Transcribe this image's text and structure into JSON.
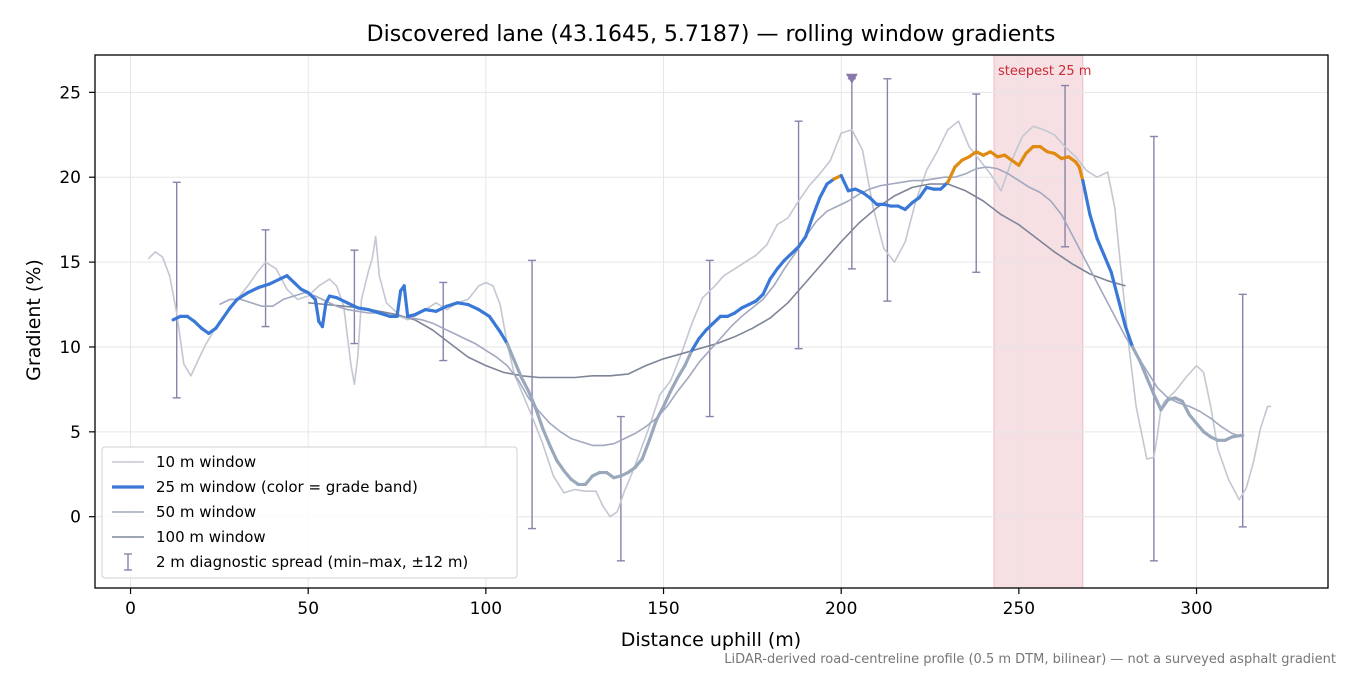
{
  "chart_data": {
    "type": "line",
    "title": "Discovered lane (43.1645, 5.7187) — rolling window gradients",
    "xlabel": "Distance uphill (m)",
    "ylabel": "Gradient (%)",
    "xlim": [
      -10,
      337
    ],
    "ylim": [
      -4.2,
      27.2
    ],
    "xticks": [
      0,
      50,
      100,
      150,
      200,
      250,
      300
    ],
    "yticks": [
      0,
      5,
      10,
      15,
      20,
      25
    ],
    "grid": true,
    "legend_position": "lower-left",
    "steepest_band": {
      "x": [
        243,
        268
      ],
      "label": "steepest 25 m",
      "color": "#e3a0a8"
    },
    "marker": {
      "x": 203,
      "y": 25.8,
      "shape": "triangle-down",
      "color": "#8a78a8"
    },
    "series": [
      {
        "name": "10 m window",
        "color": "#c3c7d1",
        "style": "thin",
        "x": [
          5,
          7,
          9,
          11,
          13,
          15,
          17,
          19,
          21,
          23,
          25,
          27,
          30,
          33,
          36,
          38,
          41,
          44,
          47,
          50,
          53,
          56,
          58,
          60,
          62,
          63,
          64,
          65,
          67,
          68,
          69,
          70,
          72,
          74,
          76,
          78,
          80,
          83,
          86,
          89,
          92,
          95,
          98,
          100,
          102,
          104,
          106,
          108,
          110,
          113,
          116,
          119,
          122,
          125,
          128,
          131,
          133,
          135,
          137,
          139,
          141,
          143,
          146,
          149,
          152,
          155,
          158,
          161,
          164,
          167,
          170,
          173,
          176,
          179,
          182,
          185,
          188,
          191,
          194,
          197,
          200,
          203,
          206,
          209,
          212,
          215,
          218,
          221,
          224,
          227,
          230,
          233,
          236,
          239,
          242,
          245,
          248,
          251,
          254,
          257,
          260,
          263,
          266,
          269,
          272,
          275,
          277,
          279,
          281,
          283,
          286,
          288,
          289,
          290,
          291,
          292,
          294,
          297,
          300,
          302,
          304,
          306,
          309,
          312,
          314,
          316,
          318,
          320,
          321
        ],
        "y": [
          15.2,
          15.6,
          15.3,
          14.2,
          12.0,
          9.0,
          8.3,
          9.2,
          10.1,
          10.8,
          11.5,
          12.0,
          12.8,
          13.6,
          14.5,
          15.0,
          14.6,
          13.4,
          12.8,
          13.0,
          13.6,
          14.0,
          13.6,
          12.4,
          9.0,
          7.8,
          9.5,
          12.8,
          14.5,
          15.2,
          16.5,
          14.2,
          12.6,
          12.2,
          11.8,
          11.6,
          11.8,
          12.2,
          12.6,
          12.2,
          12.6,
          12.8,
          13.6,
          13.8,
          13.6,
          12.5,
          10.2,
          8.4,
          7.4,
          5.9,
          4.3,
          2.4,
          1.4,
          1.6,
          1.5,
          1.5,
          0.6,
          0.0,
          0.3,
          1.5,
          2.5,
          3.6,
          5.3,
          7.2,
          8.0,
          9.6,
          11.4,
          12.9,
          13.5,
          14.2,
          14.6,
          15.0,
          15.4,
          16.0,
          17.2,
          17.6,
          18.6,
          19.5,
          20.2,
          21.0,
          22.6,
          22.8,
          21.6,
          18.2,
          15.8,
          15.0,
          16.2,
          18.6,
          20.4,
          21.5,
          22.8,
          23.3,
          21.8,
          21.0,
          20.2,
          19.2,
          21.0,
          22.4,
          23.0,
          22.8,
          22.5,
          21.8,
          21.2,
          20.4,
          20.0,
          20.3,
          18.2,
          14.0,
          10.0,
          6.5,
          3.4,
          3.5,
          4.8,
          6.4,
          6.8,
          7.0,
          7.4,
          8.2,
          8.9,
          8.5,
          6.5,
          4.0,
          2.2,
          1.0,
          1.7,
          3.2,
          5.2,
          6.5,
          6.5
        ]
      },
      {
        "name": "25 m window (color = grade band)",
        "color": "#3a78d8",
        "style": "thick",
        "band_colors": [
          {
            "min": 0,
            "max": 10,
            "color": "#9aa8bc"
          },
          {
            "min": 10,
            "max": 20,
            "color": "#3a78d8"
          },
          {
            "min": 20,
            "max": 100,
            "color": "#e08a10"
          }
        ],
        "x": [
          12,
          14,
          16,
          18,
          20,
          22,
          24,
          26,
          28,
          30,
          33,
          36,
          39,
          42,
          44,
          46,
          48,
          50,
          52,
          53,
          54,
          55,
          56,
          58,
          61,
          64,
          67,
          70,
          73,
          75,
          76,
          77,
          78,
          80,
          83,
          86,
          89,
          92,
          95,
          98,
          101,
          104,
          106,
          108,
          110,
          112,
          114,
          116,
          118,
          120,
          122,
          124,
          126,
          128,
          130,
          132,
          134,
          136,
          138,
          140,
          142,
          144,
          146,
          148,
          150,
          152,
          154,
          156,
          158,
          160,
          162,
          164,
          166,
          168,
          170,
          172,
          174,
          176,
          178,
          180,
          182,
          184,
          186,
          188,
          190,
          192,
          194,
          196,
          198,
          200,
          202,
          204,
          206,
          208,
          210,
          212,
          214,
          216,
          218,
          220,
          222,
          224,
          226,
          228,
          230,
          232,
          234,
          236,
          238,
          240,
          242,
          244,
          246,
          248,
          250,
          252,
          254,
          256,
          258,
          260,
          262,
          264,
          266,
          267,
          268,
          270,
          272,
          274,
          276,
          278,
          280,
          282,
          284,
          286,
          288,
          290,
          292,
          294,
          296,
          298,
          300,
          302,
          304,
          306,
          308,
          310,
          313
        ],
        "y": [
          11.6,
          11.8,
          11.8,
          11.5,
          11.1,
          10.8,
          11.1,
          11.7,
          12.3,
          12.8,
          13.2,
          13.5,
          13.7,
          14.0,
          14.2,
          13.8,
          13.4,
          13.2,
          12.8,
          11.5,
          11.2,
          12.6,
          13.0,
          12.9,
          12.6,
          12.3,
          12.2,
          12.0,
          11.8,
          11.8,
          13.3,
          13.6,
          11.8,
          11.9,
          12.2,
          12.1,
          12.4,
          12.6,
          12.5,
          12.2,
          11.8,
          10.9,
          10.2,
          9.2,
          8.2,
          7.4,
          6.4,
          5.2,
          4.2,
          3.3,
          2.7,
          2.2,
          1.9,
          1.9,
          2.4,
          2.6,
          2.6,
          2.3,
          2.4,
          2.6,
          2.9,
          3.4,
          4.5,
          5.7,
          6.5,
          7.4,
          8.2,
          8.9,
          9.8,
          10.5,
          11.0,
          11.4,
          11.8,
          11.8,
          12.0,
          12.3,
          12.5,
          12.7,
          13.1,
          14.0,
          14.6,
          15.1,
          15.5,
          15.9,
          16.5,
          17.7,
          18.8,
          19.6,
          19.9,
          20.1,
          19.2,
          19.3,
          19.1,
          18.8,
          18.4,
          18.4,
          18.3,
          18.3,
          18.1,
          18.5,
          18.8,
          19.4,
          19.3,
          19.3,
          19.7,
          20.6,
          21.0,
          21.2,
          21.5,
          21.3,
          21.5,
          21.2,
          21.3,
          21.0,
          20.7,
          21.4,
          21.8,
          21.8,
          21.5,
          21.4,
          21.1,
          21.2,
          20.9,
          20.6,
          19.8,
          17.8,
          16.4,
          15.4,
          14.4,
          12.8,
          11.2,
          10.0,
          9.2,
          8.2,
          7.2,
          6.3,
          6.9,
          7.0,
          6.8,
          6.0,
          5.5,
          5.0,
          4.7,
          4.5,
          4.5,
          4.7,
          4.8
        ]
      },
      {
        "name": "50 m window",
        "color": "#a2a8bf",
        "style": "medium",
        "x": [
          25,
          28,
          31,
          34,
          37,
          40,
          43,
          46,
          49,
          52,
          55,
          58,
          61,
          64,
          67,
          70,
          73,
          76,
          79,
          82,
          85,
          88,
          91,
          94,
          97,
          100,
          103,
          106,
          109,
          112,
          115,
          118,
          121,
          124,
          127,
          130,
          133,
          136,
          139,
          142,
          145,
          148,
          151,
          154,
          157,
          160,
          163,
          166,
          169,
          172,
          175,
          178,
          181,
          184,
          187,
          190,
          193,
          196,
          199,
          202,
          205,
          208,
          211,
          214,
          217,
          220,
          223,
          226,
          229,
          232,
          235,
          238,
          241,
          244,
          247,
          250,
          253,
          256,
          259,
          262,
          265,
          268,
          271,
          274,
          277,
          280,
          283,
          286,
          289,
          292,
          295,
          298,
          301,
          304,
          307,
          310,
          313
        ],
        "y": [
          12.5,
          12.8,
          12.8,
          12.6,
          12.4,
          12.4,
          12.8,
          13.0,
          13.2,
          13.0,
          12.7,
          12.4,
          12.2,
          12.1,
          12.0,
          12.0,
          11.8,
          11.8,
          11.7,
          11.6,
          11.4,
          11.1,
          10.8,
          10.5,
          10.2,
          9.8,
          9.4,
          8.9,
          8.1,
          7.0,
          6.2,
          5.5,
          5.0,
          4.6,
          4.4,
          4.2,
          4.2,
          4.3,
          4.6,
          4.9,
          5.3,
          5.8,
          6.5,
          7.4,
          8.2,
          9.1,
          9.8,
          10.5,
          11.2,
          11.8,
          12.3,
          12.8,
          13.6,
          14.6,
          15.5,
          16.5,
          17.4,
          18.0,
          18.3,
          18.6,
          19.0,
          19.3,
          19.5,
          19.6,
          19.7,
          19.8,
          19.8,
          19.9,
          20.0,
          20.0,
          20.2,
          20.5,
          20.6,
          20.5,
          20.2,
          19.8,
          19.4,
          19.1,
          18.6,
          17.8,
          16.6,
          15.4,
          14.2,
          13.0,
          11.8,
          10.6,
          9.6,
          8.6,
          7.6,
          7.0,
          6.7,
          6.5,
          6.2,
          5.8,
          5.3,
          4.9,
          4.7
        ]
      },
      {
        "name": "100 m window",
        "color": "#7e8598",
        "style": "medium",
        "x": [
          50,
          55,
          60,
          65,
          70,
          75,
          80,
          85,
          90,
          95,
          100,
          105,
          110,
          115,
          120,
          125,
          130,
          135,
          140,
          145,
          150,
          155,
          160,
          165,
          170,
          175,
          180,
          185,
          190,
          195,
          200,
          205,
          210,
          215,
          220,
          225,
          230,
          235,
          240,
          245,
          250,
          255,
          260,
          265,
          270,
          275,
          280
        ],
        "y": [
          12.6,
          12.5,
          12.4,
          12.3,
          12.1,
          11.9,
          11.6,
          11.0,
          10.2,
          9.4,
          8.9,
          8.5,
          8.3,
          8.2,
          8.2,
          8.2,
          8.3,
          8.3,
          8.4,
          8.9,
          9.3,
          9.6,
          9.9,
          10.2,
          10.6,
          11.1,
          11.7,
          12.6,
          13.8,
          15.0,
          16.2,
          17.3,
          18.2,
          18.9,
          19.4,
          19.6,
          19.6,
          19.2,
          18.6,
          17.8,
          17.2,
          16.4,
          15.6,
          14.9,
          14.3,
          13.9,
          13.6
        ]
      }
    ],
    "errorbars": {
      "name": "2 m diagnostic spread (min–max, ±12 m)",
      "color": "#8a82aa",
      "x": [
        13,
        38,
        63,
        88,
        113,
        138,
        163,
        188,
        203,
        213,
        238,
        263,
        288,
        313
      ],
      "low": [
        7.0,
        11.2,
        10.2,
        9.2,
        -0.7,
        -2.6,
        5.9,
        9.9,
        14.6,
        12.7,
        14.4,
        15.9,
        -2.6,
        -0.6
      ],
      "high": [
        19.7,
        16.9,
        15.7,
        13.8,
        15.1,
        5.9,
        15.1,
        23.3,
        25.8,
        25.8,
        24.9,
        25.4,
        22.4,
        13.1
      ]
    }
  },
  "footnote": "LiDAR-derived road-centreline profile (0.5 m DTM, bilinear) — not a surveyed asphalt gradient"
}
